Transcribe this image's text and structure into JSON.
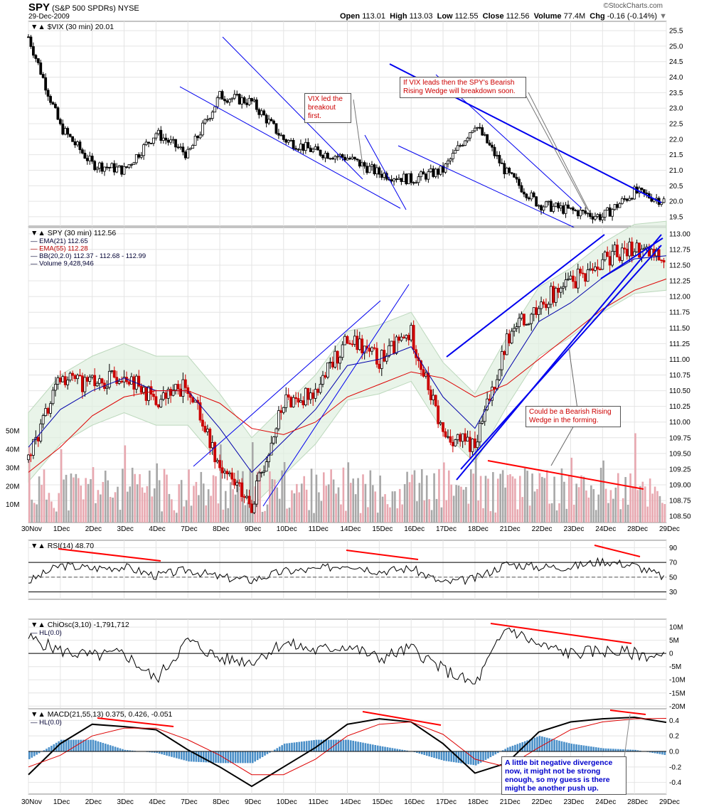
{
  "header": {
    "symbol": "SPY",
    "name": "(S&P 500 SPDRs)",
    "exchange": "NYSE",
    "date": "29-Dec-2009",
    "credit": "©StockCharts.com",
    "open_label": "Open",
    "open": "113.01",
    "high_label": "High",
    "high": "113.03",
    "low_label": "Low",
    "low": "112.55",
    "close_label": "Close",
    "close": "112.56",
    "volume_label": "Volume",
    "volume": "77.4M",
    "chg_label": "Chg",
    "chg": "-0.16 (-0.14%)"
  },
  "colors": {
    "up": "#000000",
    "down": "#cc0000",
    "trend": "#0000ee",
    "divergence": "#ff0000",
    "bb_fill": "#dff0df",
    "macd_hist": "#4a8fc8"
  },
  "chart_data": [
    {
      "type": "line",
      "panel": "vix",
      "title": "$VIX (30 min) 20.01",
      "ylim": [
        19.2,
        25.8
      ],
      "yticks": [
        "25.5",
        "25.0",
        "24.5",
        "24.0",
        "23.5",
        "23.0",
        "22.5",
        "22.0",
        "21.5",
        "21.0",
        "20.5",
        "20.0",
        "19.5"
      ],
      "x": [
        "30 Nov",
        "1 Dec",
        "2 Dec",
        "3 Dec",
        "4 Dec",
        "7 Dec",
        "8 Dec",
        "9 Dec",
        "10 Dec",
        "11 Dec",
        "14 Dec",
        "15 Dec",
        "16 Dec",
        "17 Dec",
        "18 Dec",
        "21 Dec",
        "22 Dec",
        "23 Dec",
        "24 Dec",
        "28 Dec",
        "29 Dec"
      ],
      "values": [
        25.3,
        22.4,
        21.2,
        21.0,
        22.2,
        21.5,
        23.4,
        23.2,
        22.0,
        21.6,
        21.4,
        20.9,
        20.7,
        21.0,
        22.5,
        20.9,
        19.9,
        19.7,
        19.5,
        20.3,
        20.0
      ]
    },
    {
      "type": "line",
      "panel": "price",
      "title": "SPY (30 min) 112.56",
      "legend": [
        "EMA(21) 112.65",
        "EMA(55) 112.28",
        "BB(20,2.0) 112.37 - 112.68 - 112.99",
        "Volume 9,428,946"
      ],
      "ylim": [
        108.4,
        113.1
      ],
      "yticks": [
        "113.00",
        "112.75",
        "112.50",
        "112.25",
        "112.00",
        "111.75",
        "111.50",
        "111.25",
        "111.00",
        "110.75",
        "110.50",
        "110.25",
        "110.00",
        "109.75",
        "109.50",
        "109.25",
        "109.00",
        "108.75",
        "108.50"
      ],
      "volume_ticks": [
        "50M",
        "40M",
        "30M",
        "20M",
        "10M"
      ],
      "x": [
        "30 Nov",
        "1 Dec",
        "2 Dec",
        "3 Dec",
        "4 Dec",
        "7 Dec",
        "8 Dec",
        "9 Dec",
        "10 Dec",
        "11 Dec",
        "14 Dec",
        "15 Dec",
        "16 Dec",
        "17 Dec",
        "18 Dec",
        "21 Dec",
        "22 Dec",
        "23 Dec",
        "24 Dec",
        "28 Dec",
        "29 Dec"
      ],
      "series": [
        {
          "name": "SPY",
          "values": [
            109.4,
            110.7,
            110.6,
            110.8,
            110.3,
            110.6,
            109.3,
            108.7,
            110.3,
            110.5,
            111.3,
            111.0,
            111.4,
            109.8,
            109.6,
            111.3,
            111.9,
            112.2,
            112.6,
            112.8,
            112.6
          ]
        },
        {
          "name": "EMA(21)",
          "values": [
            109.6,
            110.2,
            110.5,
            110.7,
            110.5,
            110.5,
            109.9,
            109.2,
            109.7,
            110.2,
            110.9,
            111.0,
            111.2,
            110.4,
            109.9,
            110.8,
            111.6,
            111.9,
            112.3,
            112.6,
            112.65
          ]
        },
        {
          "name": "EMA(55)",
          "values": [
            109.2,
            109.6,
            110.1,
            110.4,
            110.5,
            110.5,
            110.3,
            109.9,
            109.8,
            110.0,
            110.4,
            110.6,
            110.8,
            110.7,
            110.4,
            110.6,
            111.0,
            111.4,
            111.8,
            112.1,
            112.28
          ]
        }
      ]
    },
    {
      "type": "line",
      "panel": "rsi",
      "title": "RSI(14) 48.70",
      "ylim": [
        20,
        100
      ],
      "yticks": [
        "90",
        "70",
        "50",
        "30"
      ],
      "x": [
        "30 Nov",
        "1 Dec",
        "2 Dec",
        "3 Dec",
        "4 Dec",
        "7 Dec",
        "8 Dec",
        "9 Dec",
        "10 Dec",
        "11 Dec",
        "14 Dec",
        "15 Dec",
        "16 Dec",
        "17 Dec",
        "18 Dec",
        "21 Dec",
        "22 Dec",
        "23 Dec",
        "24 Dec",
        "28 Dec",
        "29 Dec"
      ],
      "values": [
        44,
        66,
        62,
        64,
        52,
        60,
        50,
        46,
        58,
        60,
        68,
        58,
        62,
        42,
        48,
        68,
        64,
        64,
        72,
        66,
        48.7
      ]
    },
    {
      "type": "line",
      "panel": "chaikin",
      "title": "ChiOsc(3,10) -1,791,712",
      "legend": [
        "HL(0.0)"
      ],
      "ylim": [
        -21,
        13
      ],
      "yticks": [
        "10M",
        "5M",
        "0",
        "-5M",
        "-10M",
        "-15M",
        "-20M"
      ],
      "x": [
        "30 Nov",
        "1 Dec",
        "2 Dec",
        "3 Dec",
        "4 Dec",
        "7 Dec",
        "8 Dec",
        "9 Dec",
        "10 Dec",
        "11 Dec",
        "14 Dec",
        "15 Dec",
        "16 Dec",
        "17 Dec",
        "18 Dec",
        "21 Dec",
        "22 Dec",
        "23 Dec",
        "24 Dec",
        "28 Dec",
        "29 Dec"
      ],
      "values": [
        6,
        1,
        -1,
        0,
        -10,
        5,
        -2,
        -3,
        4,
        1,
        3,
        -2,
        2,
        -6,
        -12,
        10,
        3,
        0,
        1,
        0,
        -1.8
      ]
    },
    {
      "type": "line",
      "panel": "macd",
      "title": "MACD(21,55,13) 0.375, 0.426, -0.051",
      "legend": [
        "HL(0.0)"
      ],
      "ylim": [
        -0.55,
        0.55
      ],
      "yticks": [
        "0.4",
        "0.2",
        "0.0",
        "-0.2",
        "-0.4"
      ],
      "x": [
        "30 Nov",
        "1 Dec",
        "2 Dec",
        "3 Dec",
        "4 Dec",
        "7 Dec",
        "8 Dec",
        "9 Dec",
        "10 Dec",
        "11 Dec",
        "14 Dec",
        "15 Dec",
        "16 Dec",
        "17 Dec",
        "18 Dec",
        "21 Dec",
        "22 Dec",
        "23 Dec",
        "24 Dec",
        "28 Dec",
        "29 Dec"
      ],
      "series": [
        {
          "name": "MACD",
          "values": [
            -0.3,
            0.1,
            0.35,
            0.32,
            0.28,
            0.02,
            -0.2,
            -0.45,
            -0.2,
            0.05,
            0.35,
            0.42,
            0.38,
            0.1,
            -0.28,
            -0.15,
            0.25,
            0.38,
            0.42,
            0.44,
            0.375
          ]
        },
        {
          "name": "Signal",
          "values": [
            -0.2,
            -0.05,
            0.2,
            0.3,
            0.3,
            0.15,
            -0.05,
            -0.3,
            -0.3,
            -0.1,
            0.2,
            0.35,
            0.38,
            0.22,
            -0.1,
            -0.2,
            0.05,
            0.28,
            0.38,
            0.42,
            0.426
          ]
        },
        {
          "name": "Histogram",
          "values": [
            -0.1,
            0.15,
            0.15,
            0.02,
            -0.02,
            -0.13,
            -0.15,
            -0.15,
            0.1,
            0.15,
            0.15,
            0.07,
            0.0,
            -0.12,
            -0.18,
            0.05,
            0.2,
            0.1,
            0.04,
            0.02,
            -0.051
          ]
        }
      ]
    }
  ],
  "x_labels": [
    "30Nov",
    "1Dec",
    "2Dec",
    "3Dec",
    "4Dec",
    "7Dec",
    "8Dec",
    "9Dec",
    "10Dec",
    "11Dec",
    "14Dec",
    "15Dec",
    "16Dec",
    "17Dec",
    "18Dec",
    "21Dec",
    "22Dec",
    "23Dec",
    "24Dec",
    "28Dec",
    "29Dec"
  ],
  "annotations": {
    "vix_led": "VIX led the\nbreakout first.",
    "vix_leads": "If VIX leads then the SPY's Bearish\nRising Wedge will breakdown soon.",
    "wedge": "Could be a Bearish Rising\nWedge in the forming.",
    "macd_note": "A little bit negative divergence\nnow, it might not be strong\nenough, so my guess is there\nmight be another push up."
  }
}
